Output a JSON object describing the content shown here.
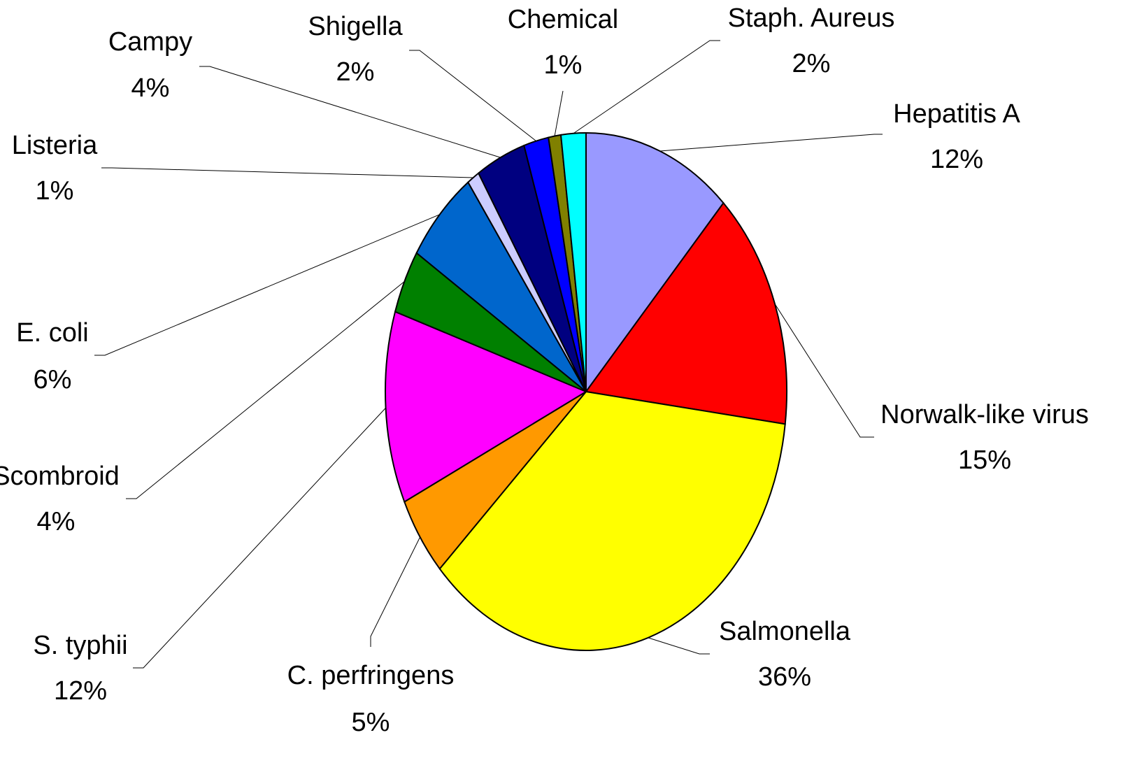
{
  "chart_data": {
    "type": "pie",
    "categories": [
      "Hepatitis A",
      "Norwalk-like virus",
      "Salmonella",
      "C. perfringens",
      "S. typhii",
      "Scombroid",
      "E. coli",
      "Listeria",
      "Campy",
      "Shigella",
      "Chemical",
      "Staph. Aureus"
    ],
    "values": [
      12,
      15,
      36,
      5,
      12,
      4,
      6,
      1,
      4,
      2,
      1,
      2
    ],
    "value_labels": [
      "12%",
      "15%",
      "36%",
      "5%",
      "12%",
      "4%",
      "6%",
      "1%",
      "4%",
      "2%",
      "1%",
      "2%"
    ],
    "colors": [
      "#9999ff",
      "#ff0000",
      "#ffff00",
      "#ff9900",
      "#ff00ff",
      "#008000",
      "#0066cc",
      "#ccccff",
      "#000080",
      "#0000ff",
      "#808000",
      "#00ffff"
    ]
  }
}
